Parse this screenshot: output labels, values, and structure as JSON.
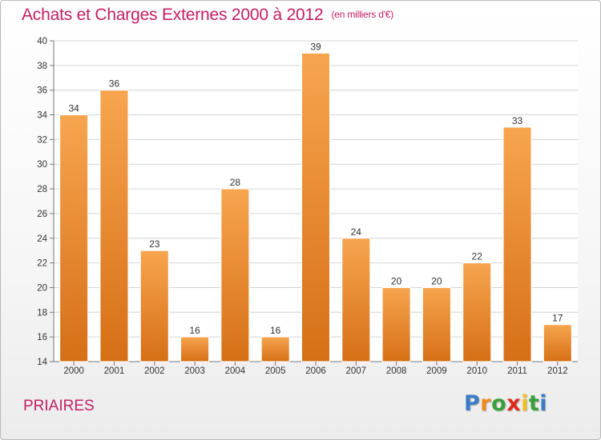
{
  "chart_data": {
    "type": "bar",
    "title": "Achats et Charges Externes 2000 à 2012",
    "subtitle": "(en milliers d'€)",
    "categories": [
      "2000",
      "2001",
      "2002",
      "2003",
      "2004",
      "2005",
      "2006",
      "2007",
      "2008",
      "2009",
      "2010",
      "2011",
      "2012"
    ],
    "values": [
      34,
      36,
      23,
      16,
      28,
      16,
      39,
      24,
      20,
      20,
      22,
      33,
      17
    ],
    "ylim": [
      14,
      40
    ],
    "yticks": [
      14,
      16,
      18,
      20,
      22,
      24,
      26,
      28,
      30,
      32,
      34,
      36,
      38,
      40
    ],
    "grid": true,
    "bar_color_light": "#f7a54f",
    "bar_color_dark": "#d66f16",
    "xlabel": "",
    "ylabel": ""
  },
  "place_name": "PRIAIRES",
  "brand": {
    "letters": [
      "P",
      "r",
      "o",
      "x",
      "i",
      "t",
      "i"
    ],
    "colors": [
      "#3a7cc8",
      "#f08a1c",
      "#3a9f3a",
      "#e0281c",
      "#f0c020",
      "#3a9f3a",
      "#3a7cc8"
    ]
  },
  "colors": {
    "title": "#c41e64"
  }
}
